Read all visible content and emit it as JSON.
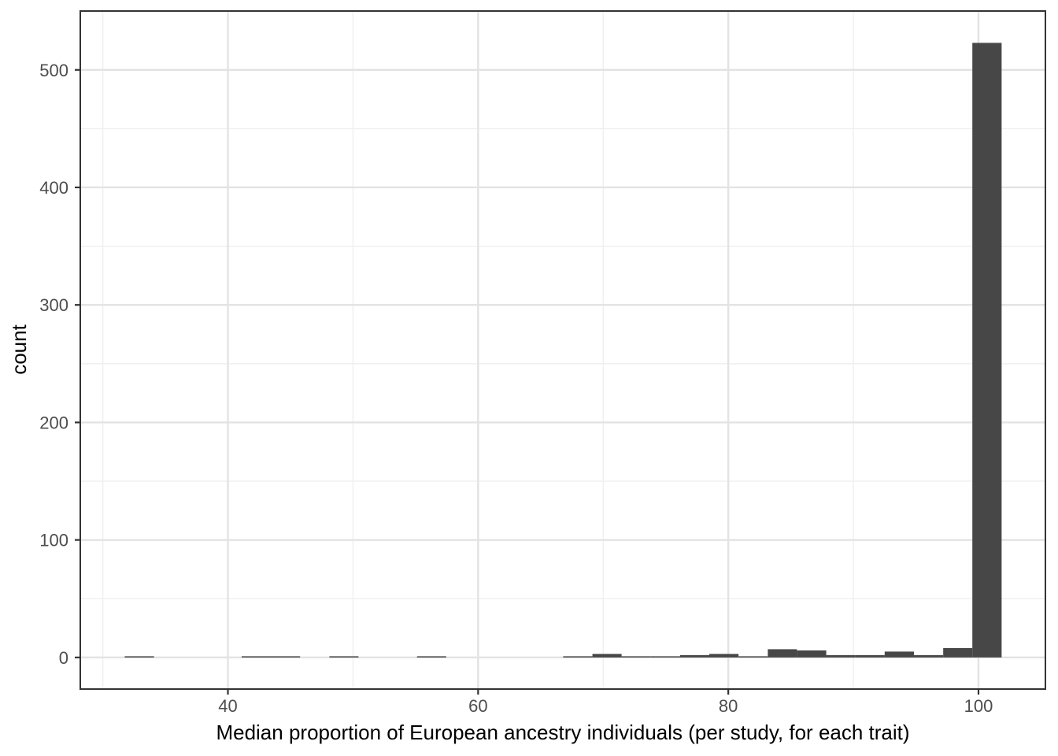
{
  "figure": {
    "kind": "ggplot-style histogram, theme_bw, no title, no legend"
  },
  "chart_data": {
    "type": "bar",
    "subtype": "histogram",
    "title": "",
    "xlabel": "Median proportion of European ancestry individuals (per study, for each trait)",
    "ylabel": "count",
    "xlim": [
      28.2,
      105.35
    ],
    "ylim": [
      -26.9,
      550.1
    ],
    "x_ticks": [
      40,
      60,
      80,
      100
    ],
    "x_tick_labels": [
      "40",
      "60",
      "80",
      "100"
    ],
    "x_minor_ticks": [
      30,
      50,
      70,
      90
    ],
    "y_ticks": [
      0,
      100,
      200,
      300,
      400,
      500
    ],
    "y_tick_labels": [
      "0",
      "100",
      "200",
      "300",
      "400",
      "500"
    ],
    "y_minor_ticks": [
      50,
      150,
      250,
      350,
      450
    ],
    "grid": "major-and-minor",
    "legend": "none",
    "bin_edges": [
      31.75,
      34.09,
      36.42,
      38.76,
      41.1,
      43.43,
      45.77,
      48.11,
      50.44,
      52.78,
      55.12,
      57.45,
      59.79,
      62.13,
      64.46,
      66.8,
      69.14,
      71.47,
      73.81,
      76.15,
      78.48,
      80.82,
      83.16,
      85.49,
      87.83,
      90.17,
      92.5,
      94.84,
      97.18,
      99.51,
      101.85
    ],
    "counts": [
      1,
      0,
      0,
      0,
      1,
      1,
      0,
      1,
      0,
      0,
      1,
      0,
      0,
      0,
      0,
      1,
      3,
      1,
      1,
      2,
      3,
      1,
      7,
      6,
      2,
      2,
      5,
      2,
      8,
      523
    ],
    "colors": {
      "bar_fill": "#474747",
      "panel_border": "#333333",
      "grid_major": "#e3e3e3",
      "grid_minor": "#eeeeee",
      "tick_mark": "#333333",
      "tick_label": "#4d4d4d",
      "axis_title": "#000000",
      "panel_background": "#ffffff"
    }
  }
}
